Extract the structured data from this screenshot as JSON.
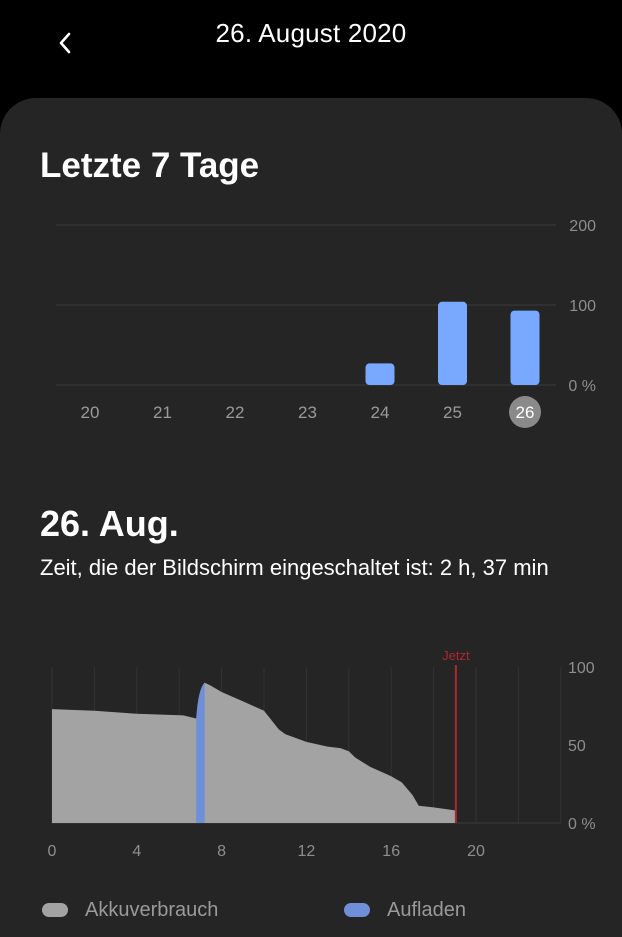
{
  "header": {
    "title": "26. August 2020",
    "back_icon": "chevron-left-icon"
  },
  "weekly": {
    "title": "Letzte 7 Tage",
    "chart_data": {
      "type": "bar",
      "categories": [
        "20",
        "21",
        "22",
        "23",
        "24",
        "25",
        "26"
      ],
      "values": [
        0,
        0,
        0,
        0,
        27,
        104,
        93
      ],
      "y_tick_labels": [
        "200",
        "100",
        "0 %"
      ],
      "ylim": [
        0,
        200
      ],
      "selected_category": "26",
      "bar_color": "#78a8ff"
    }
  },
  "daily": {
    "title": "26. Aug.",
    "screen_time_text": "Zeit, die der Bildschirm eingeschaltet ist: 2 h, 37 min",
    "now_label": "Jetzt",
    "chart_data": {
      "type": "area",
      "x_tick_labels": [
        "0",
        "4",
        "8",
        "12",
        "16",
        "20"
      ],
      "y_tick_labels": [
        "100",
        "50",
        "0 %"
      ],
      "xlim": [
        0,
        24
      ],
      "ylim": [
        0,
        100
      ],
      "now_x": 19.05,
      "series": [
        {
          "name": "Akkuverbrauch",
          "color": "#a3a3a3",
          "x": [
            0,
            2,
            4,
            6.2,
            6.8,
            7.1,
            7.2,
            7.5,
            8,
            9,
            10,
            10.7,
            11,
            12,
            13,
            13.6,
            14,
            14.3,
            15,
            16,
            16.5,
            17,
            17.3,
            18,
            19.05
          ],
          "y": [
            73,
            72,
            70,
            69,
            67,
            86,
            90,
            88,
            84,
            78,
            72,
            60,
            57,
            52,
            49,
            48,
            46,
            42,
            36,
            30,
            26,
            18,
            11,
            10,
            8
          ]
        },
        {
          "name": "Aufladen",
          "color": "#6f8fd8",
          "x_start": 6.8,
          "x_end": 7.2,
          "y_start": 67,
          "y_end": 90
        }
      ],
      "legend": [
        {
          "label": "Akkuverbrauch",
          "color": "#a3a3a3"
        },
        {
          "label": "Aufladen",
          "color": "#6f8fd8"
        }
      ]
    }
  }
}
